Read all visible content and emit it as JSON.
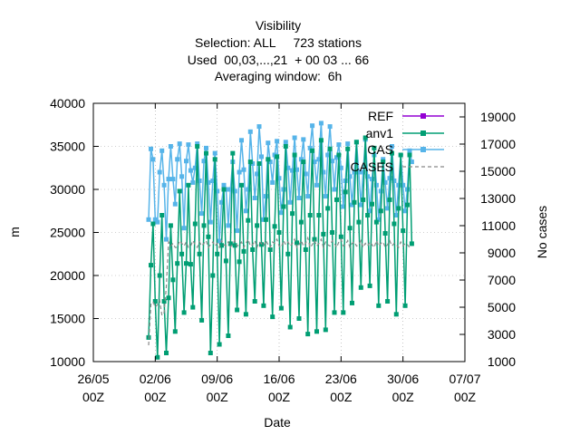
{
  "chart_data": {
    "type": "line",
    "title_lines": [
      "Visibility",
      "Selection: ALL     723 stations",
      "Used  00,03,...,21  + 00 03 ... 66",
      "Averaging window:  6h"
    ],
    "xlabel": "Date",
    "ylabel": "m",
    "y2label": "No cases",
    "xlim": [
      0,
      42
    ],
    "ylim": [
      10000,
      40000
    ],
    "y2lim": [
      1000,
      20000
    ],
    "x_ticks": [
      {
        "x": 0,
        "l1": "26/05",
        "l2": "00Z"
      },
      {
        "x": 7,
        "l1": "02/06",
        "l2": "00Z"
      },
      {
        "x": 14,
        "l1": "09/06",
        "l2": "00Z"
      },
      {
        "x": 21,
        "l1": "16/06",
        "l2": "00Z"
      },
      {
        "x": 28,
        "l1": "23/06",
        "l2": "00Z"
      },
      {
        "x": 35,
        "l1": "30/06",
        "l2": "00Z"
      },
      {
        "x": 42,
        "l1": "07/07",
        "l2": "00Z"
      }
    ],
    "y_ticks": [
      10000,
      15000,
      20000,
      25000,
      30000,
      35000,
      40000
    ],
    "y2_ticks": [
      1000,
      3000,
      5000,
      7000,
      9000,
      11000,
      13000,
      15000,
      17000,
      19000
    ],
    "legend": [
      {
        "label": "REF",
        "color": "#9400d3",
        "style": "solid"
      },
      {
        "label": "anv1",
        "color": "#009e73",
        "style": "solid"
      },
      {
        "label": "CAS",
        "color": "#56b4e9",
        "style": "solid"
      },
      {
        "label": "CASES",
        "color": "#888888",
        "style": "dashed"
      }
    ],
    "series": [
      {
        "name": "CAS",
        "color": "#56b4e9",
        "axis": "y",
        "x": [
          6.25,
          6.5,
          6.75,
          7,
          7.25,
          7.5,
          7.75,
          8,
          8.25,
          8.5,
          8.75,
          9,
          9.25,
          9.5,
          9.75,
          10,
          10.25,
          10.5,
          10.75,
          11,
          11.25,
          11.5,
          11.75,
          12,
          12.25,
          12.5,
          12.75,
          13,
          13.25,
          13.5,
          13.75,
          14,
          14.25,
          14.5,
          14.75,
          15,
          15.25,
          15.5,
          15.75,
          16,
          16.25,
          16.5,
          16.75,
          17,
          17.25,
          17.5,
          17.75,
          18,
          18.25,
          18.5,
          18.75,
          19,
          19.25,
          19.5,
          19.75,
          20,
          20.25,
          20.5,
          20.75,
          21,
          21.25,
          21.5,
          21.75,
          22,
          22.25,
          22.5,
          22.75,
          23,
          23.25,
          23.5,
          23.75,
          24,
          24.25,
          24.5,
          24.75,
          25,
          25.25,
          25.5,
          25.75,
          26,
          26.25,
          26.5,
          26.75,
          27,
          27.25,
          27.5,
          27.75,
          28,
          28.25,
          28.5,
          28.75,
          29,
          29.25,
          29.5,
          29.75,
          30,
          30.25,
          30.5,
          30.75,
          31,
          31.25,
          31.5,
          31.75,
          32,
          32.25,
          32.5,
          32.75,
          33,
          33.25,
          33.5,
          33.75,
          34,
          34.25,
          34.5,
          34.75,
          35,
          35.25,
          35.5,
          35.75,
          36
        ],
        "y": [
          26500,
          34700,
          33500,
          26500,
          26200,
          32000,
          34500,
          30500,
          24200,
          31200,
          35000,
          31200,
          28300,
          33500,
          35300,
          31500,
          25500,
          33300,
          35200,
          32200,
          30800,
          32500,
          35300,
          31000,
          27200,
          33300,
          34800,
          30800,
          26200,
          31000,
          34200,
          29800,
          24000,
          28500,
          30500,
          30000,
          25800,
          30000,
          33200,
          29800,
          25200,
          32000,
          35700,
          32300,
          27500,
          30000,
          36700,
          33000,
          29000,
          31800,
          37300,
          33800,
          26500,
          29200,
          35400,
          33200,
          30800,
          34000,
          35600,
          31300,
          27300,
          30000,
          35500,
          32500,
          28500,
          32200,
          36000,
          32300,
          29000,
          33500,
          35800,
          31800,
          29200,
          34800,
          37400,
          33200,
          30500,
          33500,
          37700,
          32000,
          29200,
          34000,
          37300,
          33300,
          30000,
          33700,
          35200,
          32500,
          28000,
          31000,
          35300,
          31500,
          28200,
          32000,
          35500,
          32000,
          28200,
          32000,
          35800,
          31500,
          27500,
          31200,
          34000,
          30500,
          26500,
          29800,
          33500,
          30800,
          27800,
          31300,
          35000,
          31000,
          27000,
          30500,
          34000,
          30500,
          27500,
          30000,
          34500,
          33200
        ]
      },
      {
        "name": "anv1",
        "color": "#009e73",
        "axis": "y",
        "x": [
          6.25,
          6.5,
          6.75,
          7,
          7.25,
          7.5,
          7.75,
          8,
          8.25,
          8.5,
          8.75,
          9,
          9.25,
          9.5,
          9.75,
          10,
          10.25,
          10.5,
          10.75,
          11,
          11.25,
          11.5,
          11.75,
          12,
          12.25,
          12.5,
          12.75,
          13,
          13.25,
          13.5,
          13.75,
          14,
          14.25,
          14.5,
          14.75,
          15,
          15.25,
          15.5,
          15.75,
          16,
          16.25,
          16.5,
          16.75,
          17,
          17.25,
          17.5,
          17.75,
          18,
          18.25,
          18.5,
          18.75,
          19,
          19.25,
          19.5,
          19.75,
          20,
          20.25,
          20.5,
          20.75,
          21,
          21.25,
          21.5,
          21.75,
          22,
          22.25,
          22.5,
          22.75,
          23,
          23.25,
          23.5,
          23.75,
          24,
          24.25,
          24.5,
          24.75,
          25,
          25.25,
          25.5,
          25.75,
          26,
          26.25,
          26.5,
          26.75,
          27,
          27.25,
          27.5,
          27.75,
          28,
          28.25,
          28.5,
          28.75,
          29,
          29.25,
          29.5,
          29.75,
          30,
          30.25,
          30.5,
          30.75,
          31,
          31.25,
          31.5,
          31.75,
          32,
          32.25,
          32.5,
          32.75,
          33,
          33.25,
          33.5,
          33.75,
          34,
          34.25,
          34.5,
          34.75,
          35,
          35.25,
          35.5,
          35.75,
          36
        ],
        "y": [
          12800,
          21200,
          26000,
          17000,
          10500,
          20000,
          27000,
          17000,
          11000,
          17400,
          25800,
          19500,
          13500,
          21400,
          29800,
          22500,
          15700,
          21400,
          30500,
          21300,
          16300,
          26000,
          35000,
          22500,
          14800,
          25800,
          34200,
          24500,
          11000,
          20000,
          33500,
          22500,
          12000,
          23500,
          30000,
          21700,
          13000,
          23700,
          34200,
          23500,
          16000,
          21600,
          30500,
          22800,
          15500,
          26400,
          33200,
          23000,
          17000,
          25800,
          33000,
          23600,
          16500,
          26500,
          33500,
          23000,
          15200,
          25700,
          33800,
          25000,
          16200,
          28000,
          35000,
          22500,
          14000,
          27200,
          34000,
          23800,
          15000,
          26200,
          33200,
          23000,
          13200,
          27000,
          34500,
          24200,
          13500,
          27000,
          35700,
          24800,
          13700,
          27800,
          34700,
          25000,
          15700,
          28800,
          34000,
          24500,
          15700,
          29700,
          34700,
          25500,
          16800,
          28500,
          35500,
          26200,
          18600,
          28800,
          36000,
          27000,
          18800,
          28300,
          34800,
          26200,
          16500,
          27500,
          33200,
          24900,
          17000,
          28800,
          34200,
          26000,
          15500,
          27800,
          34000,
          25200,
          16500,
          28200,
          34000,
          23700
        ]
      },
      {
        "name": "CASES",
        "color": "#888888",
        "axis": "y2",
        "x": [
          6.25,
          6.5,
          6.75,
          7,
          7.25,
          7.5,
          7.75,
          8,
          8.25,
          8.5,
          8.75,
          9,
          9.25,
          9.5,
          9.75,
          10,
          10.25,
          10.5,
          10.75,
          11,
          11.25,
          11.5,
          11.75,
          12,
          12.25,
          12.5,
          12.75,
          13,
          13.25,
          13.5,
          13.75,
          14,
          14.25,
          14.5,
          14.75,
          15,
          15.25,
          15.5,
          15.75,
          16,
          16.25,
          16.5,
          16.75,
          17,
          17.25,
          17.5,
          17.75,
          18,
          18.25,
          18.5,
          18.75,
          19,
          19.25,
          19.5,
          19.75,
          20,
          20.25,
          20.5,
          20.75,
          21,
          21.25,
          21.5,
          21.75,
          22,
          22.25,
          22.5,
          22.75,
          23,
          23.25,
          23.5,
          23.75,
          24,
          24.25,
          24.5,
          24.75,
          25,
          25.25,
          25.5,
          25.75,
          26,
          26.25,
          26.5,
          26.75,
          27,
          27.25,
          27.5,
          27.75,
          28,
          28.25,
          28.5,
          28.75,
          29,
          29.25,
          29.5,
          29.75,
          30,
          30.25,
          30.5,
          30.75,
          31,
          31.25,
          31.5,
          31.75,
          32,
          32.25,
          32.5,
          32.75,
          33,
          33.25,
          33.5,
          33.75,
          34,
          34.25,
          34.5,
          34.75,
          35,
          35.25,
          35.5,
          35.75,
          36
        ],
        "y": [
          2200,
          5200,
          5400,
          5000,
          5200,
          5500,
          4400,
          4600,
          6500,
          9800,
          9500,
          9700,
          9400,
          9400,
          9900,
          9700,
          9500,
          9800,
          9400,
          9500,
          9900,
          9600,
          9400,
          9800,
          9500,
          9700,
          9900,
          9400,
          9600,
          9800,
          9500,
          9700,
          9400,
          9900,
          9600,
          9500,
          9800,
          9400,
          9700,
          9900,
          9500,
          9600,
          9800,
          9400,
          9700,
          10000,
          9500,
          9600,
          9900,
          9400,
          9800,
          9700,
          9500,
          9900,
          9600,
          9400,
          9800,
          9700,
          10000,
          9500,
          9400,
          9900,
          9600,
          9800,
          9500,
          9700,
          10000,
          9400,
          9600,
          9900,
          9500,
          9700,
          10100,
          9400,
          9600,
          9900,
          9500,
          9700,
          10000,
          9400,
          9800,
          9600,
          9500,
          9900,
          9700,
          9400,
          9800,
          10000,
          9500,
          9600,
          9900,
          9400,
          9700,
          9800,
          9500,
          9600,
          9900,
          9400,
          9700,
          9500,
          9800,
          9600,
          9400,
          9900,
          9500,
          9700,
          9800,
          9400,
          9600,
          9900,
          9500,
          9700,
          9600,
          9400,
          9800,
          9500,
          9700,
          9600,
          9400,
          9500
        ]
      }
    ]
  }
}
